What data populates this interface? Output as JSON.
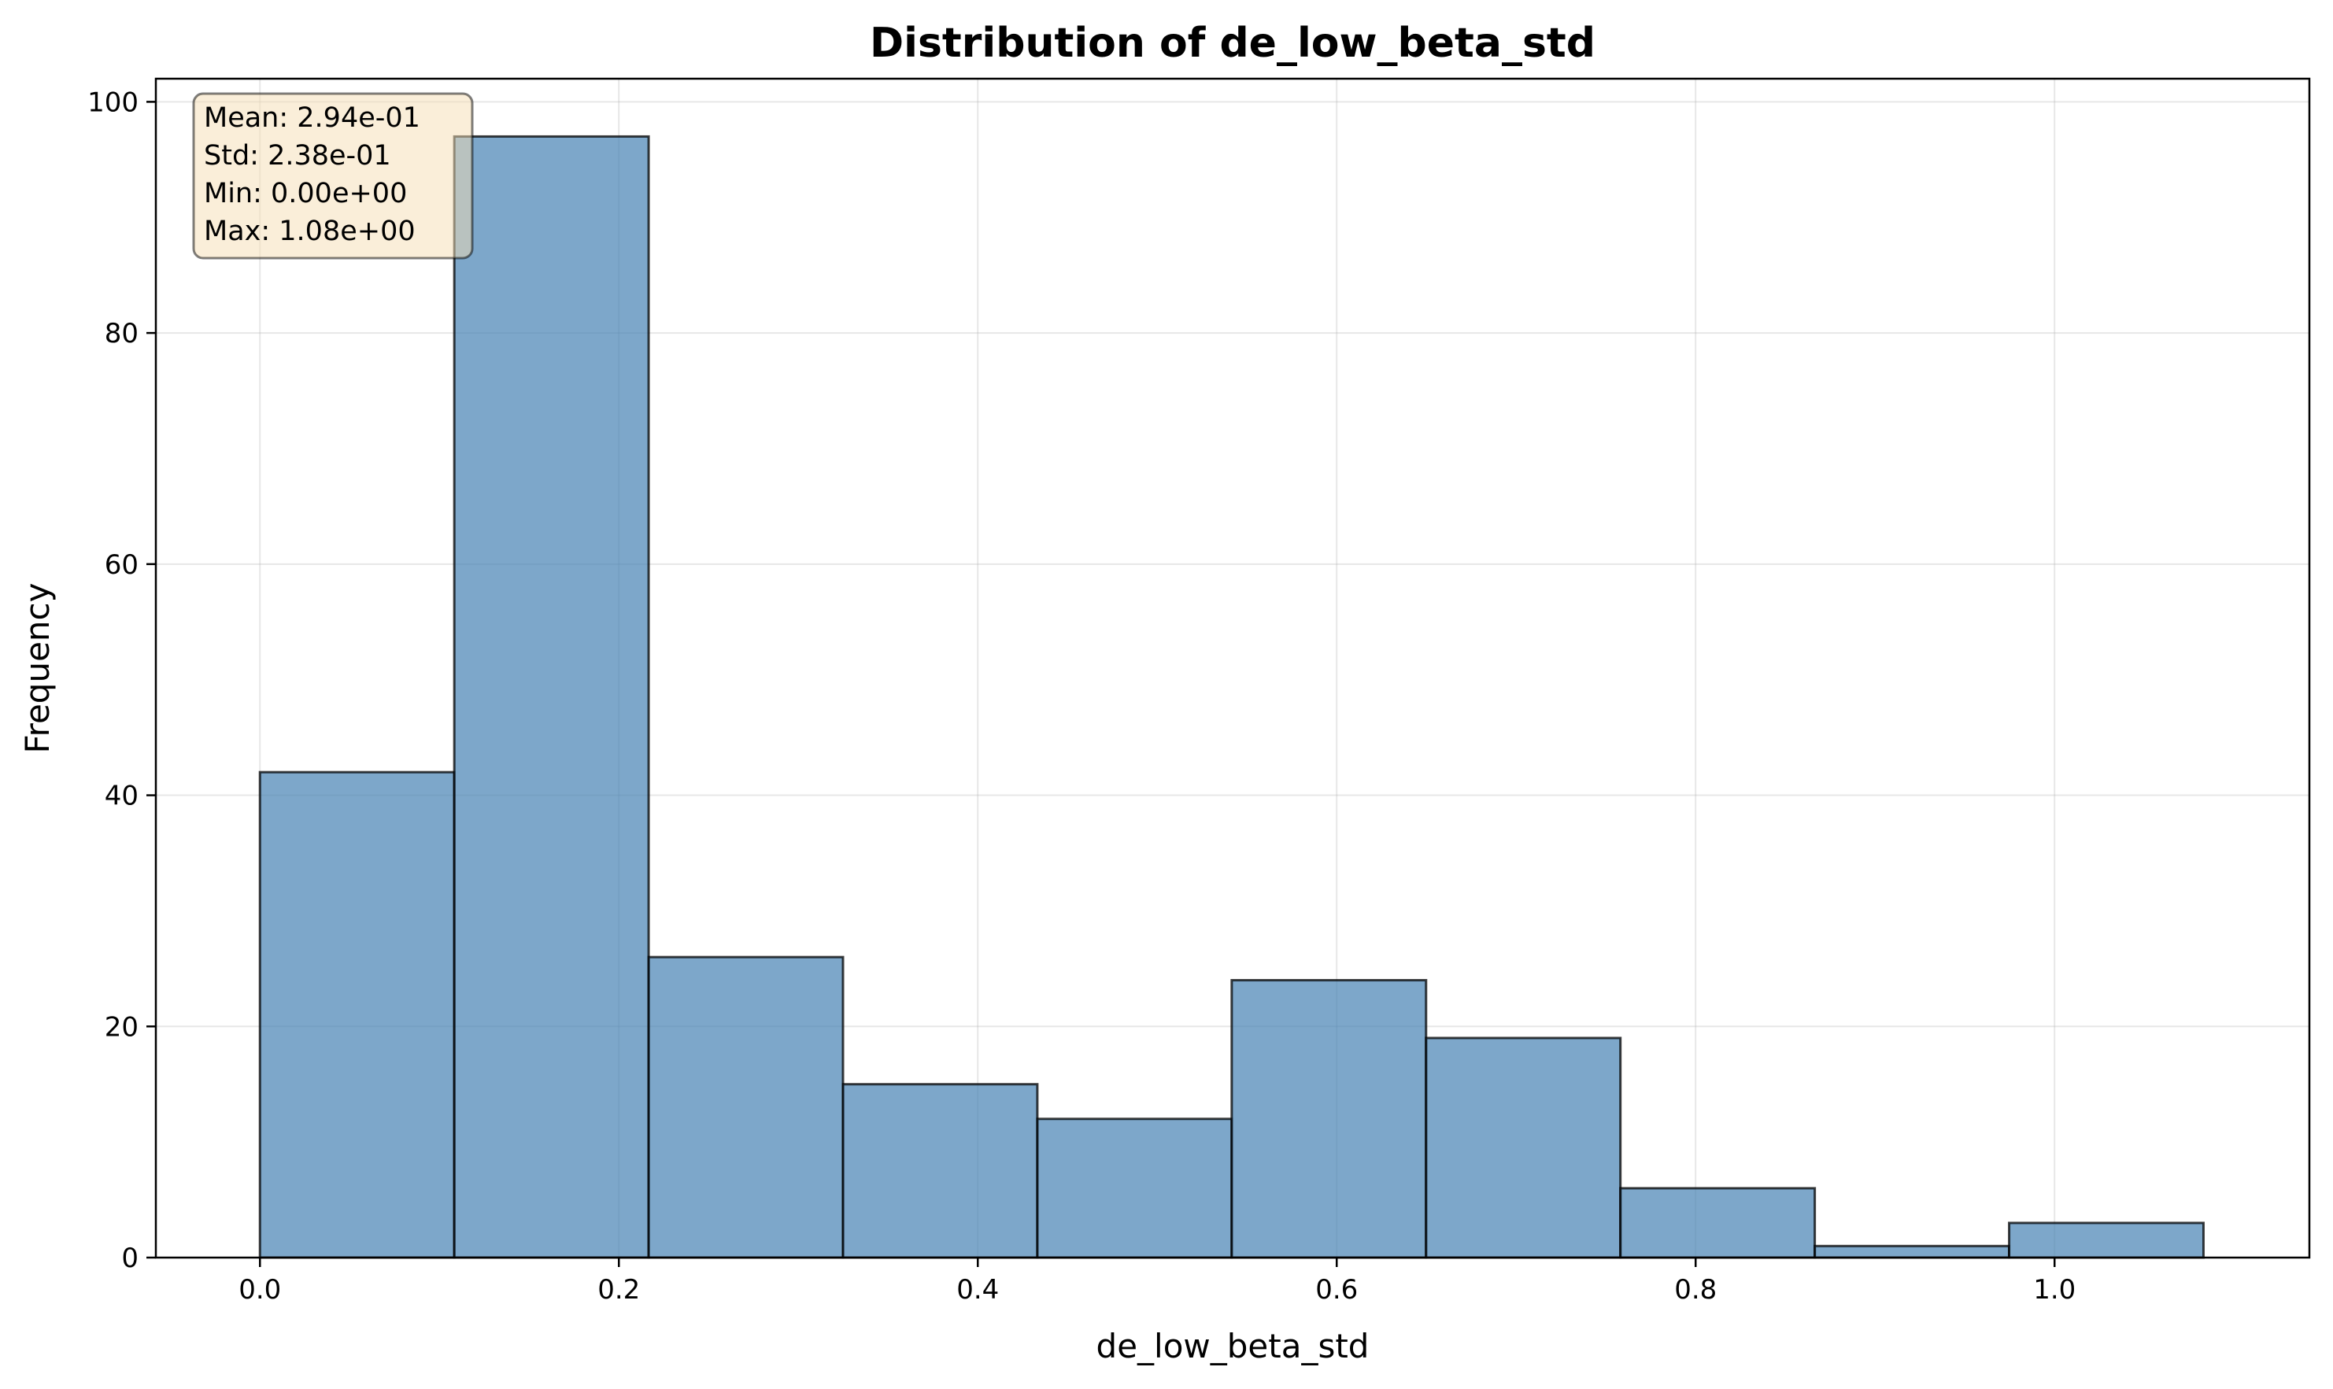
{
  "chart_data": {
    "type": "bar",
    "title": "Distribution of de_low_beta_std",
    "xlabel": "de_low_beta_std",
    "ylabel": "Frequency",
    "xlim": [
      -0.058,
      1.142
    ],
    "ylim": [
      0,
      102
    ],
    "x_ticks": [
      0.0,
      0.2,
      0.4,
      0.6,
      0.8,
      1.0
    ],
    "x_tick_labels": [
      "0.0",
      "0.2",
      "0.4",
      "0.6",
      "0.8",
      "1.0"
    ],
    "y_ticks": [
      0,
      20,
      40,
      60,
      80,
      100
    ],
    "y_tick_labels": [
      "0",
      "20",
      "40",
      "60",
      "80",
      "100"
    ],
    "bin_edges": [
      0.0,
      0.1083,
      0.2166,
      0.3249,
      0.4332,
      0.5415,
      0.6498,
      0.7581,
      0.8664,
      0.9747,
      1.083
    ],
    "values": [
      42,
      97,
      26,
      15,
      12,
      24,
      19,
      6,
      1,
      3
    ],
    "grid": true,
    "bar_color": "#4682b4",
    "bar_edge_color": "#000000",
    "stats_box": {
      "lines": [
        "Mean: 2.94e-01",
        "Std: 2.38e-01",
        "Min: 0.00e+00",
        "Max: 1.08e+00"
      ],
      "background": "#f5deb3",
      "placement": "top-left"
    }
  }
}
